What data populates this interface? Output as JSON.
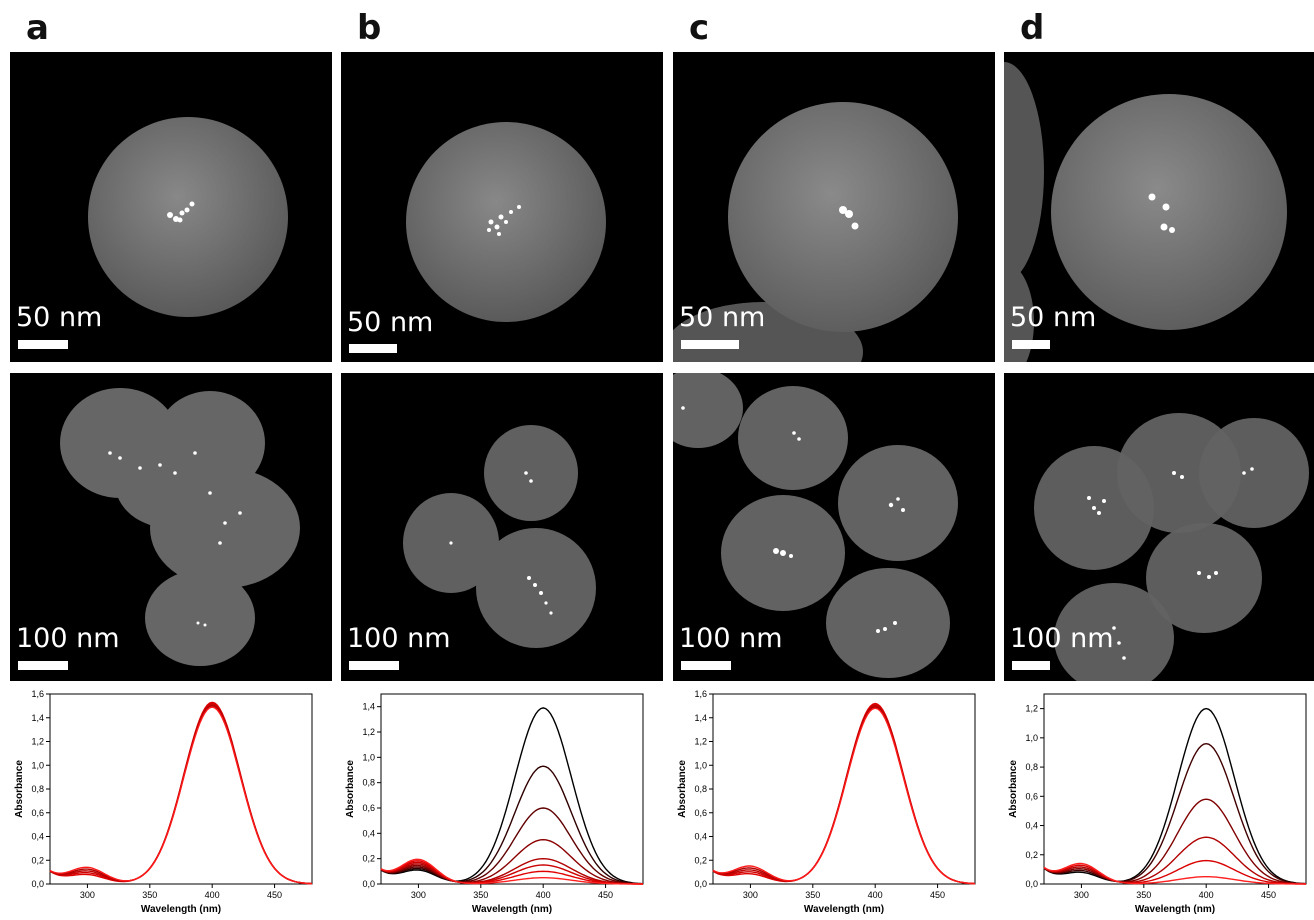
{
  "panels": [
    {
      "letter": "a",
      "scale_top": "50 nm",
      "scale_bottom": "100 nm",
      "chart": {
        "type": "line",
        "xlabel": "Wavelength (nm)",
        "ylabel": "Absorbance",
        "xlim": [
          270,
          480
        ],
        "ylim": [
          0,
          1.6
        ],
        "xticks": [
          "300",
          "350",
          "400",
          "450"
        ],
        "yticks": [
          "0,0",
          "0,2",
          "0,4",
          "0,6",
          "0,8",
          "1,0",
          "1,2",
          "1,4",
          "1,6"
        ],
        "peaks": [
          1.53,
          1.52,
          1.51,
          1.5,
          1.49
        ],
        "dip": [
          0.12,
          0.12,
          0.12,
          0.12,
          0.12
        ],
        "colors": [
          "#e00000",
          "#d00000",
          "#c00000",
          "#b00000",
          "#ff1a1a"
        ]
      }
    },
    {
      "letter": "b",
      "scale_top": "50 nm",
      "scale_bottom": "100 nm",
      "chart": {
        "type": "line",
        "xlabel": "Wavelength (nm)",
        "ylabel": "Absorbance",
        "xlim": [
          270,
          480
        ],
        "ylim": [
          0,
          1.5
        ],
        "xticks": [
          "300",
          "350",
          "400",
          "450"
        ],
        "yticks": [
          "0,0",
          "0,2",
          "0,4",
          "0,6",
          "0,8",
          "1,0",
          "1,2",
          "1,4"
        ],
        "peaks": [
          1.39,
          0.93,
          0.6,
          0.35,
          0.2,
          0.15,
          0.1,
          0.05
        ],
        "dip": [
          0.17,
          0.17,
          0.17,
          0.17,
          0.17,
          0.17,
          0.17,
          0.17
        ],
        "colors": [
          "#000000",
          "#300000",
          "#600000",
          "#8a0000",
          "#b00000",
          "#cc0000",
          "#e00000",
          "#ff2020"
        ]
      }
    },
    {
      "letter": "c",
      "scale_top": "50 nm",
      "scale_bottom": "100 nm",
      "chart": {
        "type": "line",
        "xlabel": "Wavelength (nm)",
        "ylabel": "Absorbance",
        "xlim": [
          270,
          480
        ],
        "ylim": [
          0,
          1.6
        ],
        "xticks": [
          "300",
          "350",
          "400",
          "450"
        ],
        "yticks": [
          "0,0",
          "0,2",
          "0,4",
          "0,6",
          "0,8",
          "1,0",
          "1,2",
          "1,4",
          "1,6"
        ],
        "peaks": [
          1.52,
          1.51,
          1.5,
          1.49,
          1.48
        ],
        "dip": [
          0.13,
          0.13,
          0.13,
          0.13,
          0.13
        ],
        "colors": [
          "#e00000",
          "#d00000",
          "#c00000",
          "#b00000",
          "#ff1a1a"
        ]
      }
    },
    {
      "letter": "d",
      "scale_top": "50 nm",
      "scale_bottom": "100 nm",
      "chart": {
        "type": "line",
        "xlabel": "Wavelength (nm)",
        "ylabel": "Absorbance",
        "xlim": [
          270,
          480
        ],
        "ylim": [
          0,
          1.3
        ],
        "xticks": [
          "300",
          "350",
          "400",
          "450"
        ],
        "yticks": [
          "0,0",
          "0,2",
          "0,4",
          "0,6",
          "0,8",
          "1,0",
          "1,2"
        ],
        "peaks": [
          1.2,
          0.96,
          0.58,
          0.32,
          0.16,
          0.05
        ],
        "dip": [
          0.12,
          0.12,
          0.12,
          0.12,
          0.12,
          0.12
        ],
        "colors": [
          "#000000",
          "#400000",
          "#800000",
          "#b00000",
          "#d80000",
          "#ff2020"
        ]
      }
    }
  ]
}
